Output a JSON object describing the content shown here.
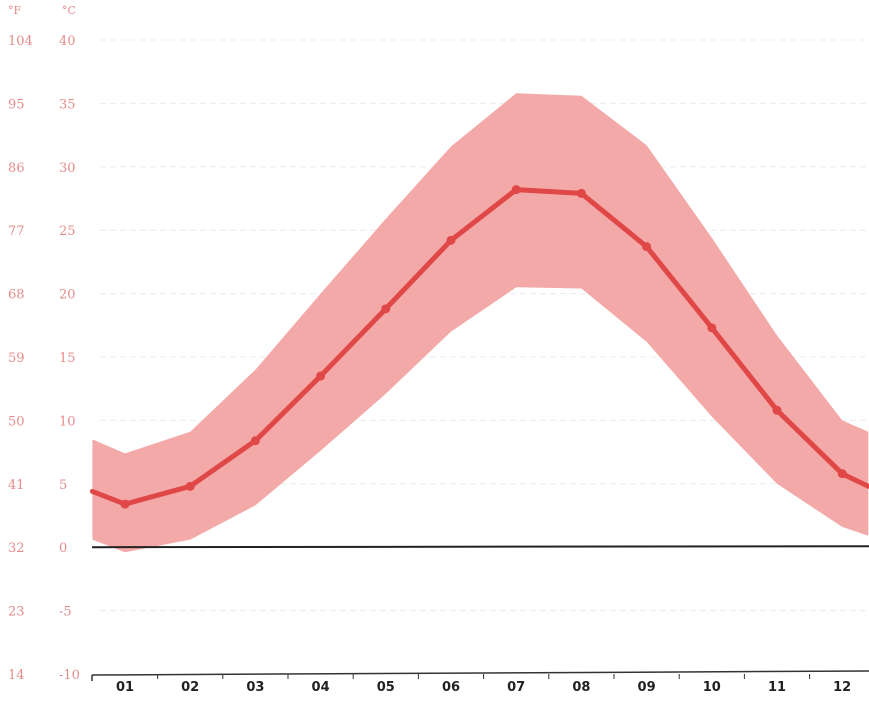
{
  "chart_data": {
    "type": "area",
    "units": {
      "fahrenheit": "°F",
      "celsius": "°C"
    },
    "categories": [
      "01",
      "02",
      "03",
      "04",
      "05",
      "06",
      "07",
      "08",
      "09",
      "10",
      "11",
      "12"
    ],
    "y_ticks_c": [
      "40",
      "35",
      "30",
      "25",
      "20",
      "15",
      "10",
      "5",
      "0",
      "-5",
      "-10"
    ],
    "y_ticks_f": [
      "104",
      "95",
      "86",
      "77",
      "68",
      "59",
      "50",
      "41",
      "32",
      "23",
      "14"
    ],
    "ylim_c": [
      -10,
      40
    ],
    "grid": true,
    "colors": {
      "line": "#e04747",
      "band": "#f4a9a9",
      "tick_text": "#e58b8b",
      "zero_line": "#222222"
    },
    "series": [
      {
        "x": [
          0.5,
          1,
          2,
          3,
          4,
          5,
          6,
          7,
          8,
          9,
          10,
          11,
          12,
          12.4
        ],
        "mean": [
          4.4,
          3.4,
          4.8,
          8.4,
          13.5,
          18.8,
          24.2,
          28.2,
          27.9,
          23.7,
          17.3,
          10.8,
          5.8,
          4.8
        ],
        "max": [
          8.5,
          7.4,
          9.1,
          14.0,
          20.0,
          25.9,
          31.6,
          35.8,
          35.6,
          31.7,
          24.4,
          16.7,
          10.0,
          9.1
        ],
        "min": [
          0.6,
          -0.4,
          0.6,
          3.3,
          7.6,
          12.1,
          17.0,
          20.5,
          20.4,
          16.2,
          10.3,
          5.0,
          1.6,
          0.9
        ]
      }
    ]
  }
}
